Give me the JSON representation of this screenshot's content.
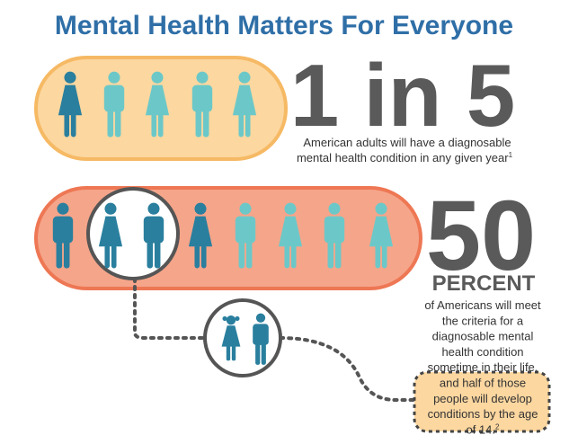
{
  "title": "Mental Health Matters For Everyone",
  "stat1": {
    "headline": "1 in 5",
    "caption": [
      "American adults will have a diagnosable",
      "mental health condition in any given year"
    ],
    "footnote": "1"
  },
  "stat2": {
    "headline": "50",
    "unit": "PERCENT",
    "caption": [
      "of Americans will meet",
      "the criteria for a",
      "diagnosable mental",
      "health condition",
      "sometime in their life,",
      "and half of those",
      "people will develop",
      "conditions by the age",
      "of 14."
    ],
    "footnote": "2"
  }
}
